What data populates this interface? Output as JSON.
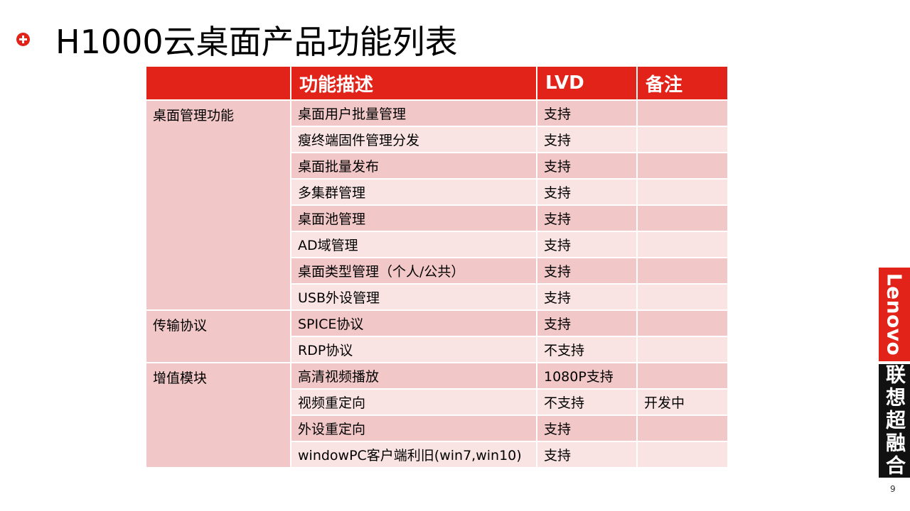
{
  "slide": {
    "title": "H1000云桌面产品功能列表",
    "page_number": "9"
  },
  "brand": {
    "logo_text": "Lenovo",
    "cn_text": "联想超融合",
    "colors": {
      "accent": "#e2231a",
      "dark": "#111111"
    }
  },
  "table": {
    "headers": [
      "",
      "功能描述",
      "LVD",
      "备注"
    ],
    "groups": [
      {
        "name": "桌面管理功能",
        "rows": [
          {
            "feature": "桌面用户批量管理",
            "lvd": "支持",
            "note": ""
          },
          {
            "feature": "瘦终端固件管理分发",
            "lvd": "支持",
            "note": ""
          },
          {
            "feature": "桌面批量发布",
            "lvd": "支持",
            "note": ""
          },
          {
            "feature": "多集群管理",
            "lvd": "支持",
            "note": ""
          },
          {
            "feature": "桌面池管理",
            "lvd": "支持",
            "note": ""
          },
          {
            "feature": "AD域管理",
            "lvd": "支持",
            "note": ""
          },
          {
            "feature": "桌面类型管理（个人/公共）",
            "lvd": "支持",
            "note": ""
          },
          {
            "feature": "USB外设管理",
            "lvd": "支持",
            "note": ""
          }
        ]
      },
      {
        "name": "传输协议",
        "rows": [
          {
            "feature": "SPICE协议",
            "lvd": "支持",
            "note": ""
          },
          {
            "feature": "RDP协议",
            "lvd": "不支持",
            "note": ""
          }
        ]
      },
      {
        "name": "增值模块",
        "rows": [
          {
            "feature": "高清视频播放",
            "lvd": "1080P支持",
            "note": ""
          },
          {
            "feature": "视频重定向",
            "lvd": "不支持",
            "note": "开发中"
          },
          {
            "feature": "外设重定向",
            "lvd": "支持",
            "note": ""
          },
          {
            "feature": "windowPC客户端利旧(win7,win10)",
            "lvd": "支持",
            "note": ""
          }
        ]
      }
    ]
  }
}
